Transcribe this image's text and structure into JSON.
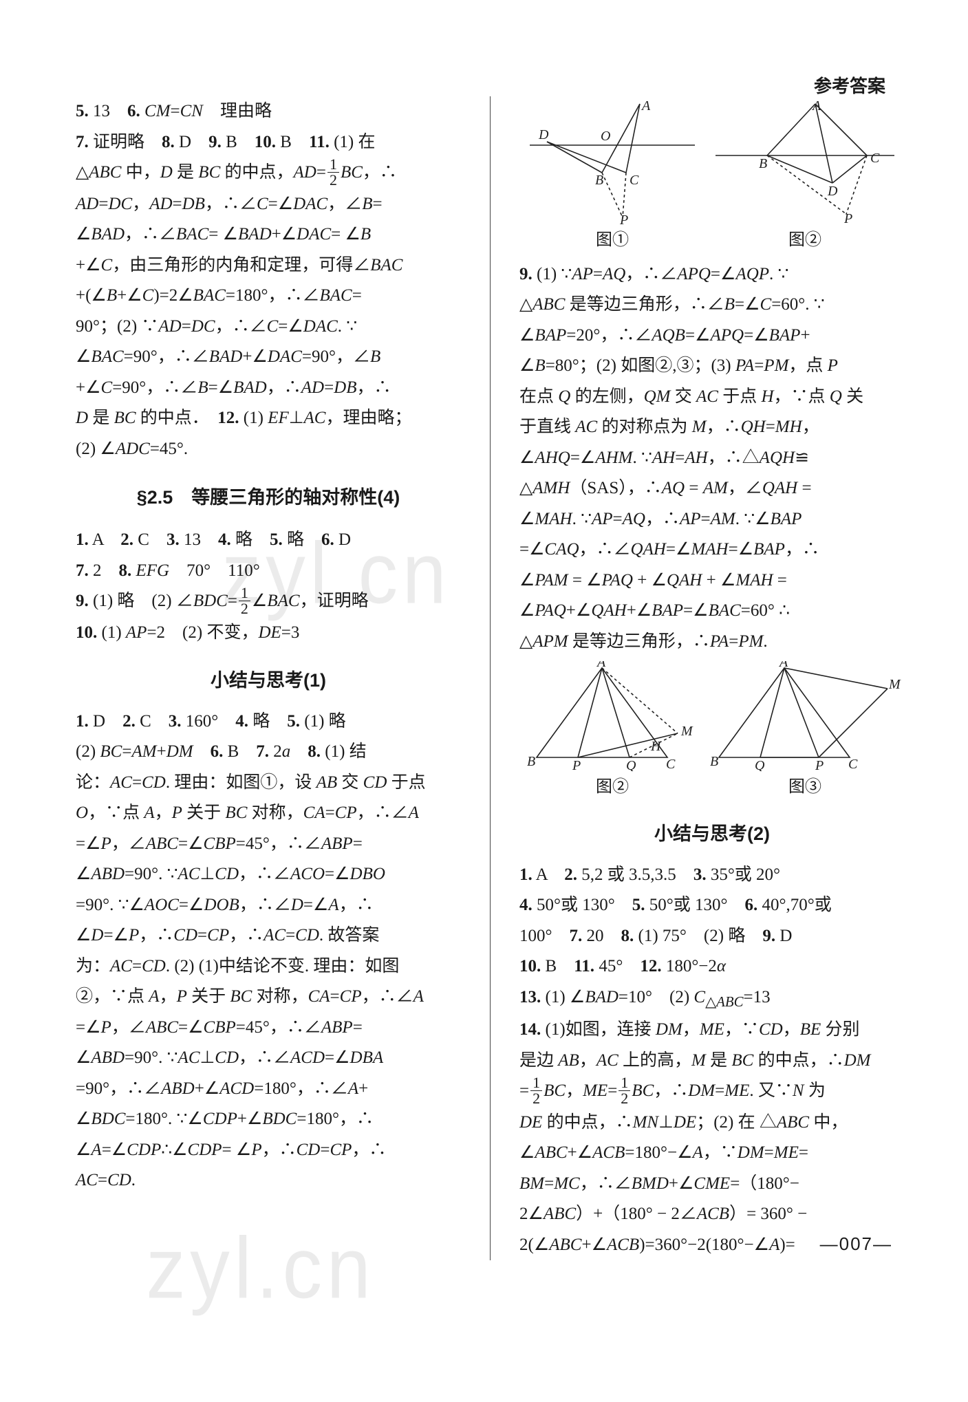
{
  "header": "参考答案",
  "page_number": "—007—",
  "watermark_text": "zyl.cn",
  "left": {
    "pre_text_lines": [
      "<b>5.</b> 13　<b>6.</b> <i>CM</i>=<i>CN</i>　理由略",
      "<b>7.</b> 证明略　<b>8.</b> D　<b>9.</b> B　<b>10.</b> B　<b>11.</b> (1) 在",
      "△<i>ABC</i> 中，<i>D</i> 是 <i>BC</i> 的中点，<i>AD</i>=<span class='frac'><span class='num'>1</span><span class='den'>2</span></span><i>BC</i>，∴",
      "<i>AD</i>=<i>DC</i>，<i>AD</i>=<i>DB</i>，∴∠<i>C</i>=∠<i>DAC</i>，∠<i>B</i>=",
      "∠<i>BAD</i>，∴∠<i>BAC</i>= ∠<i>BAD</i>+∠<i>DAC</i>= ∠<i>B</i>",
      "+∠<i>C</i>，由三角形的内角和定理，可得∠<i>BAC</i>",
      "+(∠<i>B</i>+∠<i>C</i>)=2∠<i>BAC</i>=180°，∴∠<i>BAC</i>=",
      "90°；(2)  ∵<i>AD</i>=<i>DC</i>，∴∠<i>C</i>=∠<i>DAC</i>.  ∵",
      "∠<i>BAC</i>=90°，∴∠<i>BAD</i>+∠<i>DAC</i>=90°，∠<i>B</i>",
      "+∠<i>C</i>=90°，∴∠<i>B</i>=∠<i>BAD</i>，∴<i>AD</i>=<i>DB</i>，∴",
      "<i>D</i> 是 <i>BC</i> 的中点．　<b>12.</b> (1) <i>EF</i>⊥<i>AC</i>，理由略；",
      "(2) ∠<i>ADC</i>=45°."
    ],
    "section25": {
      "title": "§2.5　等腰三角形的轴对称性(4)",
      "lines": [
        "<b>1.</b> A　<b>2.</b> C　<b>3.</b> 13　<b>4.</b> 略　<b>5.</b> 略　<b>6.</b> D",
        "<b>7.</b> 2　<b>8.</b> <i>EFG</i>　70°　110°",
        "<b>9.</b> (1) 略　(2) ∠<i>BDC</i>=<span class='frac'><span class='num'>1</span><span class='den'>2</span></span>∠<i>BAC</i>，证明略",
        "<b>10.</b> (1) <i>AP</i>=2　(2) 不变，<i>DE</i>=3"
      ]
    },
    "summary1": {
      "title": "小结与思考(1)",
      "lines": [
        "<b>1.</b> D　<b>2.</b> C　<b>3.</b> 160°　<b>4.</b> 略　<b>5.</b> (1) 略",
        "(2) <i>BC</i>=<i>AM</i>+<i>DM</i>　<b>6.</b> B　<b>7.</b> 2<i>a</i>　<b>8.</b> (1) 结",
        "论：<i>AC</i>=<i>CD</i>. 理由：如图①，设 <i>AB</i> 交 <i>CD</i> 于点",
        "<i>O</i>，∵点 <i>A</i>，<i>P</i> 关于 <i>BC</i> 对称，<i>CA</i>=<i>CP</i>，∴∠<i>A</i>",
        "=∠<i>P</i>，∠<i>ABC</i>=∠<i>CBP</i>=45°，∴∠<i>ABP</i>=",
        "∠<i>ABD</i>=90°. ∵<i>AC</i>⊥<i>CD</i>，∴∠<i>ACO</i>=∠<i>DBO</i>",
        "=90°. ∵∠<i>AOC</i>=∠<i>DOB</i>，∴∠<i>D</i>=∠<i>A</i>，∴",
        "∠<i>D</i>=∠<i>P</i>，∴<i>CD</i>=<i>CP</i>，∴<i>AC</i>=<i>CD</i>. 故答案",
        "为：<i>AC</i>=<i>CD</i>. (2) (1)中结论不变. 理由：如图",
        "②，∵点 <i>A</i>，<i>P</i> 关于 <i>BC</i> 对称，<i>CA</i>=<i>CP</i>，∴∠<i>A</i>",
        "=∠<i>P</i>，∠<i>ABC</i>=∠<i>CBP</i>=45°，∴∠<i>ABP</i>=",
        "∠<i>ABD</i>=90°. ∵<i>AC</i>⊥<i>CD</i>，∴∠<i>ACD</i>=∠<i>DBA</i>",
        "=90°，∴∠<i>ABD</i>+∠<i>ACD</i>=180°，∴∠<i>A</i>+",
        "∠<i>BDC</i>=180°. ∵∠<i>CDP</i>+∠<i>BDC</i>=180°，∴",
        "∠<i>A</i>=∠<i>CDP</i>∴∠<i>CDP</i>= ∠<i>P</i>，∴<i>CD</i>=<i>CP</i>，∴",
        "<i>AC</i>=<i>CD</i>."
      ]
    }
  },
  "right": {
    "fig_pair1": {
      "cap1": "图①",
      "cap2": "图②",
      "labelsA": {
        "A": "A",
        "B": "B",
        "C": "C",
        "D": "D",
        "O": "O",
        "P": "P"
      },
      "labelsB": {
        "A": "A",
        "B": "B",
        "C": "C",
        "D": "D",
        "P": "P"
      }
    },
    "q9_lines": [
      "<b>9.</b> (1) ∵<i>AP</i>=<i>AQ</i>，∴∠<i>APQ</i>=∠<i>AQP</i>. ∵",
      "△<i>ABC</i> 是等边三角形，∴∠<i>B</i>=∠<i>C</i>=60°. ∵",
      "∠<i>BAP</i>=20°，∴∠<i>AQB</i>=∠<i>APQ</i>=∠<i>BAP</i>+",
      "∠<i>B</i>=80°；(2) 如图②,③；(3) <i>PA</i>=<i>PM</i>，点 <i>P</i>",
      "在点 <i>Q</i> 的左侧，<i>QM</i> 交 <i>AC</i> 于点 <i>H</i>，∵点 <i>Q</i> 关",
      "于直线 <i>AC</i> 的对称点为 <i>M</i>，∴<i>QH</i>=<i>MH</i>，",
      "∠<i>AHQ</i>=∠<i>AHM</i>. ∵<i>AH</i>=<i>AH</i>，∴△<i>AQH</i>≌",
      "△<i>AMH</i>（SAS），∴<i>AQ</i> = <i>AM</i>，∠<i>QAH</i> =",
      "∠<i>MAH</i>. ∵<i>AP</i>=<i>AQ</i>，∴<i>AP</i>=<i>AM</i>. ∵∠<i>BAP</i>",
      "=∠<i>CAQ</i>，∴∠<i>QAH</i>=∠<i>MAH</i>=∠<i>BAP</i>，∴",
      "∠<i>PAM</i> = ∠<i>PAQ</i> + ∠<i>QAH</i> + ∠<i>MAH</i> =",
      "∠<i>PAQ</i>+∠<i>QAH</i>+∠<i>BAP</i>=∠<i>BAC</i>=60° ∴",
      "△<i>APM</i> 是等边三角形，∴<i>PA</i>=<i>PM</i>."
    ],
    "fig_pair2": {
      "cap1": "图②",
      "cap2": "图③",
      "labelsA": {
        "A": "A",
        "B": "B",
        "C": "C",
        "P": "P",
        "Q": "Q",
        "M": "M",
        "H": "H"
      },
      "labelsB": {
        "A": "A",
        "B": "B",
        "C": "C",
        "P": "P",
        "Q": "Q",
        "M": "M"
      }
    },
    "summary2": {
      "title": "小结与思考(2)",
      "lines": [
        "<b>1.</b> A　<b>2.</b> 5,2 或 3.5,3.5　<b>3.</b> 35°或 20°",
        "<b>4.</b> 50°或 130°　<b>5.</b> 50°或 130°　<b>6.</b> 40°,70°或",
        "100°　<b>7.</b> 20　<b>8.</b> (1) 75°　(2) 略　<b>9.</b> D",
        "<b>10.</b> B　<b>11.</b> 45°　<b>12.</b> 180°−2<i>α</i>",
        "<b>13.</b> (1) ∠<i>BAD</i>=10°　(2) <i>C</i><sub>△<i>ABC</i></sub>=13",
        "<b>14.</b> (1)如图，连接 <i>DM</i>，<i>ME</i>，∵<i>CD</i>，<i>BE</i> 分别",
        "是边 <i>AB</i>，<i>AC</i> 上的高，<i>M</i> 是 <i>BC</i> 的中点，∴<i>DM</i>",
        "=<span class='frac'><span class='num'>1</span><span class='den'>2</span></span><i>BC</i>，<i>ME</i>=<span class='frac'><span class='num'>1</span><span class='den'>2</span></span><i>BC</i>，∴<i>DM</i>=<i>ME</i>. 又∵<i>N</i> 为",
        "<i>DE</i> 的中点，∴<i>MN</i>⊥<i>DE</i>；(2) 在 △<i>ABC</i> 中，",
        "∠<i>ABC</i>+∠<i>ACB</i>=180°−∠<i>A</i>，∵<i>DM</i>=<i>ME</i>=",
        "<i>BM</i>=<i>MC</i>，∴∠<i>BMD</i>+∠<i>CME</i>=（180°−",
        "2∠<i>ABC</i>）+（180° − 2∠<i>ACB</i>）= 360° −",
        "2(∠<i>ABC</i>+∠<i>ACB</i>)=360°−2(180°−∠<i>A</i>)="
      ]
    }
  },
  "style": {
    "font_body_pt": 25,
    "font_title_pt": 27,
    "line_height": 1.78,
    "colors": {
      "text": "#1a1a1a",
      "background": "#ffffff",
      "watermark": "rgba(0,0,0,0.08)",
      "stroke": "#222222"
    }
  }
}
